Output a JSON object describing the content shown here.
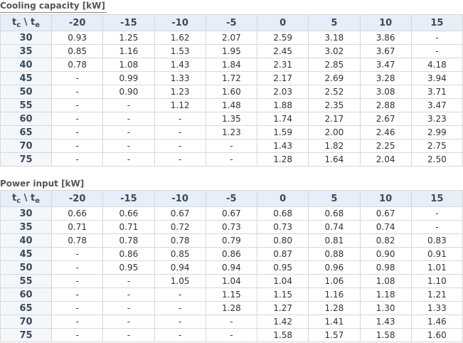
{
  "corner": {
    "t1": "t",
    "s1": "c",
    "sep": " \\ ",
    "t2": "t",
    "s2": "e"
  },
  "tables": [
    {
      "title": "Cooling capacity [kW]",
      "columns": [
        "-20",
        "-15",
        "-10",
        "-5",
        "0",
        "5",
        "10",
        "15"
      ],
      "rows": [
        {
          "label": "30",
          "values": [
            "0.93",
            "1.25",
            "1.62",
            "2.07",
            "2.59",
            "3.18",
            "3.86",
            "-"
          ]
        },
        {
          "label": "35",
          "values": [
            "0.85",
            "1.16",
            "1.53",
            "1.95",
            "2.45",
            "3.02",
            "3.67",
            "-"
          ]
        },
        {
          "label": "40",
          "values": [
            "0.78",
            "1.08",
            "1.43",
            "1.84",
            "2.31",
            "2.85",
            "3.47",
            "4.18"
          ]
        },
        {
          "label": "45",
          "values": [
            "-",
            "0.99",
            "1.33",
            "1.72",
            "2.17",
            "2.69",
            "3.28",
            "3.94"
          ]
        },
        {
          "label": "50",
          "values": [
            "-",
            "0.90",
            "1.23",
            "1.60",
            "2.03",
            "2.52",
            "3.08",
            "3.71"
          ]
        },
        {
          "label": "55",
          "values": [
            "-",
            "-",
            "1.12",
            "1.48",
            "1.88",
            "2.35",
            "2.88",
            "3.47"
          ]
        },
        {
          "label": "60",
          "values": [
            "-",
            "-",
            "-",
            "1.35",
            "1.74",
            "2.17",
            "2.67",
            "3.23"
          ]
        },
        {
          "label": "65",
          "values": [
            "-",
            "-",
            "-",
            "1.23",
            "1.59",
            "2.00",
            "2.46",
            "2.99"
          ]
        },
        {
          "label": "70",
          "values": [
            "-",
            "-",
            "-",
            "-",
            "1.43",
            "1.82",
            "2.25",
            "2.75"
          ]
        },
        {
          "label": "75",
          "values": [
            "-",
            "-",
            "-",
            "-",
            "1.28",
            "1.64",
            "2.04",
            "2.50"
          ]
        }
      ]
    },
    {
      "title": "Power input [kW]",
      "columns": [
        "-20",
        "-15",
        "-10",
        "-5",
        "0",
        "5",
        "10",
        "15"
      ],
      "rows": [
        {
          "label": "30",
          "values": [
            "0.66",
            "0.66",
            "0.67",
            "0.67",
            "0.68",
            "0.68",
            "0.67",
            "-"
          ]
        },
        {
          "label": "35",
          "values": [
            "0.71",
            "0.71",
            "0.72",
            "0.73",
            "0.73",
            "0.74",
            "0.74",
            "-"
          ]
        },
        {
          "label": "40",
          "values": [
            "0.78",
            "0.78",
            "0.78",
            "0.79",
            "0.80",
            "0.81",
            "0.82",
            "0.83"
          ]
        },
        {
          "label": "45",
          "values": [
            "-",
            "0.86",
            "0.85",
            "0.86",
            "0.87",
            "0.88",
            "0.90",
            "0.91"
          ]
        },
        {
          "label": "50",
          "values": [
            "-",
            "0.95",
            "0.94",
            "0.94",
            "0.95",
            "0.96",
            "0.98",
            "1.01"
          ]
        },
        {
          "label": "55",
          "values": [
            "-",
            "-",
            "1.05",
            "1.04",
            "1.04",
            "1.06",
            "1.08",
            "1.10"
          ]
        },
        {
          "label": "60",
          "values": [
            "-",
            "-",
            "-",
            "1.15",
            "1.15",
            "1.16",
            "1.18",
            "1.21"
          ]
        },
        {
          "label": "65",
          "values": [
            "-",
            "-",
            "-",
            "1.28",
            "1.27",
            "1.28",
            "1.30",
            "1.33"
          ]
        },
        {
          "label": "70",
          "values": [
            "-",
            "-",
            "-",
            "-",
            "1.42",
            "1.41",
            "1.43",
            "1.46"
          ]
        },
        {
          "label": "75",
          "values": [
            "-",
            "-",
            "-",
            "-",
            "1.58",
            "1.57",
            "1.58",
            "1.60"
          ]
        }
      ]
    }
  ]
}
